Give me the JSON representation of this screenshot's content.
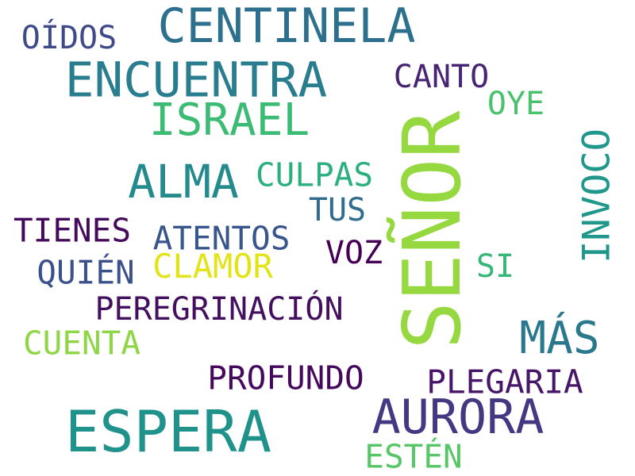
{
  "words": [
    {
      "id": "senor",
      "text": "SEÑOR",
      "color": "#95d840"
    },
    {
      "id": "espera",
      "text": "ESPERA",
      "color": "#20928c"
    },
    {
      "id": "centinela",
      "text": "CENTINELA",
      "color": "#2d708e"
    },
    {
      "id": "encuentra",
      "text": "ENCUENTRA",
      "color": "#287d8e"
    },
    {
      "id": "aurora",
      "text": "AURORA",
      "color": "#453781"
    },
    {
      "id": "israel",
      "text": "ISRAEL",
      "color": "#3cbb75"
    },
    {
      "id": "alma",
      "text": "ALMA",
      "color": "#238a8d"
    },
    {
      "id": "mas",
      "text": "MÁS",
      "color": "#2a788e"
    },
    {
      "id": "peregrinacion",
      "text": "PEREGRINACIÓN",
      "color": "#440f5e"
    },
    {
      "id": "plegaria",
      "text": "PLEGARIA",
      "color": "#481668"
    },
    {
      "id": "profundo",
      "text": "PROFUNDO",
      "color": "#46085c"
    },
    {
      "id": "atentos",
      "text": "ATENTOS",
      "color": "#39568c"
    },
    {
      "id": "clamor",
      "text": "CLAMOR",
      "color": "#e2e418"
    },
    {
      "id": "culpas",
      "text": "CULPAS",
      "color": "#2ab07f"
    },
    {
      "id": "tienes",
      "text": "TIENES",
      "color": "#460a5d"
    },
    {
      "id": "quien",
      "text": "QUIÉN",
      "color": "#3b518b"
    },
    {
      "id": "cuenta",
      "text": "CUENTA",
      "color": "#8ed645"
    },
    {
      "id": "estan",
      "text": "ESTÉN",
      "color": "#56c667"
    },
    {
      "id": "oidos",
      "text": "OÍDOS",
      "color": "#3e4a89"
    },
    {
      "id": "canto",
      "text": "CANTO",
      "color": "#482475"
    },
    {
      "id": "oye",
      "text": "OYE",
      "color": "#4ac16d"
    },
    {
      "id": "invoco",
      "text": "INVOCO",
      "color": "#1f988b"
    },
    {
      "id": "tus",
      "text": "TUS",
      "color": "#2f6c8e"
    },
    {
      "id": "voz",
      "text": "VOZ",
      "color": "#440154"
    },
    {
      "id": "si",
      "text": "SI",
      "color": "#35b779"
    }
  ]
}
